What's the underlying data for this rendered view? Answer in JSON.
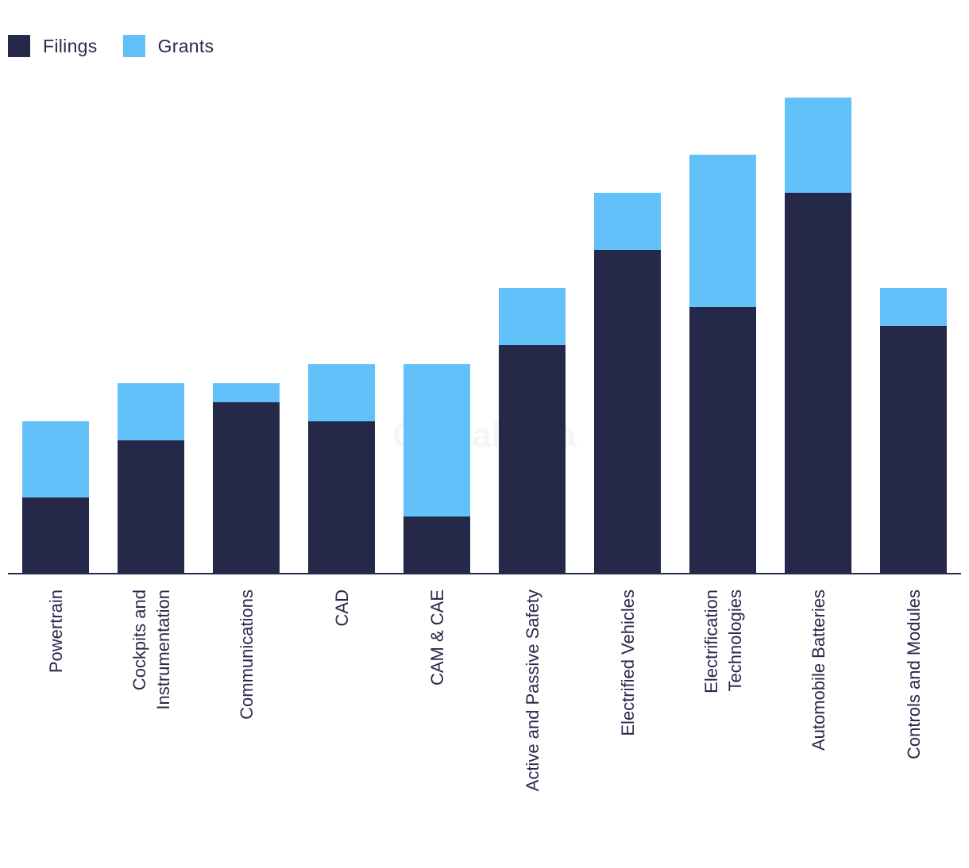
{
  "legend": {
    "filings_label": "Filings",
    "grants_label": "Grants"
  },
  "watermark": "GlobalData",
  "colors": {
    "filings": "#262849",
    "grants": "#62c1f9",
    "axis": "#262a4b"
  },
  "chart_data": {
    "type": "bar",
    "stacked": true,
    "title": "",
    "xlabel": "",
    "ylabel": "",
    "ylim": [
      0,
      25
    ],
    "grid": false,
    "legend_position": "top-left",
    "categories": [
      [
        "Powertrain"
      ],
      [
        "Cockpits and",
        "Instrumentation"
      ],
      [
        "Communications"
      ],
      [
        "CAD"
      ],
      [
        "CAM & CAE"
      ],
      [
        "Active and Passive Safety"
      ],
      [
        "Electrified Vehicles"
      ],
      [
        "Electrification",
        "Technologies"
      ],
      [
        "Automobile Batteries"
      ],
      [
        "Controls and Modules"
      ]
    ],
    "series": [
      {
        "name": "Filings",
        "values": [
          4,
          7,
          9,
          8,
          3,
          12,
          17,
          14,
          20,
          13
        ]
      },
      {
        "name": "Grants",
        "values": [
          4,
          3,
          1,
          3,
          8,
          3,
          3,
          8,
          5,
          2
        ]
      }
    ]
  }
}
